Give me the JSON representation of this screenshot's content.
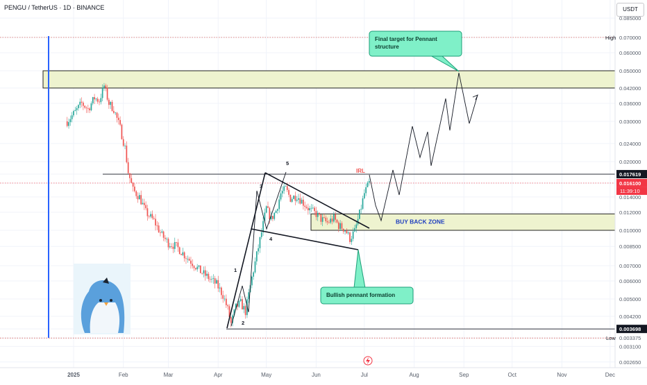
{
  "symbol_title": "PENGU / TetherUS · 1D · BINANCE",
  "currency": "USDT",
  "colors": {
    "up": "#26a69a",
    "down": "#ef5350",
    "zone_fill": "#eef3cf",
    "callout_fill": "#7ff0c8",
    "callout_border": "#1b9e77",
    "buy_back_text": "#1f3fbf",
    "irl_text": "#ef5350",
    "vertical_line": "#2962ff",
    "price_badge": "#f23645",
    "level_badge": "#131722"
  },
  "chart_data": {
    "type": "candlestick",
    "title": "",
    "y_scale": "log",
    "ylim": [
      0.0025,
      0.09
    ],
    "x_tick_labels": [
      "2025",
      "Feb",
      "Mar",
      "Apr",
      "May",
      "Jun",
      "Jul",
      "Aug",
      "Sep",
      "Oct",
      "Nov",
      "Dec"
    ],
    "y_tick_labels": [
      "0.085000",
      "0.070000",
      "0.060000",
      "0.050000",
      "0.042000",
      "0.036000",
      "0.030000",
      "0.024000",
      "0.020000",
      "0.017619",
      "0.016100",
      "0.014000",
      "0.012000",
      "0.010000",
      "0.008500",
      "0.007000",
      "0.006000",
      "0.005000",
      "0.004200",
      "0.003698",
      "0.003375",
      "0.003100",
      "0.002650"
    ],
    "y_tick_values": [
      0.085,
      0.07,
      0.06,
      0.05,
      0.042,
      0.036,
      0.03,
      0.024,
      0.02,
      0.017619,
      0.0161,
      0.014,
      0.012,
      0.01,
      0.0085,
      0.007,
      0.006,
      0.005,
      0.0042,
      0.003698,
      0.003375,
      0.0031,
      0.00265
    ],
    "high_label": "High",
    "high_value": 0.07,
    "low_label": "Low",
    "low_value": 0.003375,
    "current_price": "0.016100",
    "countdown": "11:39:10",
    "level_price": "0.017619",
    "level_bottom": "0.003698",
    "close_path": [
      [
        "2024-12-28",
        0.03
      ],
      [
        "2025-01-02",
        0.033
      ],
      [
        "2025-01-06",
        0.036
      ],
      [
        "2025-01-10",
        0.034
      ],
      [
        "2025-01-14",
        0.038
      ],
      [
        "2025-01-17",
        0.037
      ],
      [
        "2025-01-20",
        0.043
      ],
      [
        "2025-01-23",
        0.036
      ],
      [
        "2025-01-26",
        0.034
      ],
      [
        "2025-01-30",
        0.028
      ],
      [
        "2025-02-02",
        0.023
      ],
      [
        "2025-02-04",
        0.018
      ],
      [
        "2025-02-07",
        0.015
      ],
      [
        "2025-02-11",
        0.014
      ],
      [
        "2025-02-15",
        0.012
      ],
      [
        "2025-02-20",
        0.011
      ],
      [
        "2025-02-25",
        0.0095
      ],
      [
        "2025-03-01",
        0.0088
      ],
      [
        "2025-03-06",
        0.0085
      ],
      [
        "2025-03-11",
        0.0078
      ],
      [
        "2025-03-16",
        0.0072
      ],
      [
        "2025-03-21",
        0.0066
      ],
      [
        "2025-03-26",
        0.0062
      ],
      [
        "2025-03-31",
        0.0058
      ],
      [
        "2025-04-04",
        0.0052
      ],
      [
        "2025-04-07",
        0.0045
      ],
      [
        "2025-04-09",
        0.0039
      ],
      [
        "2025-04-12",
        0.0046
      ],
      [
        "2025-04-15",
        0.0048
      ],
      [
        "2025-04-18",
        0.0044
      ],
      [
        "2025-04-22",
        0.0062
      ],
      [
        "2025-04-25",
        0.0078
      ],
      [
        "2025-04-28",
        0.0098
      ],
      [
        "2025-05-01",
        0.0125
      ],
      [
        "2025-05-04",
        0.0112
      ],
      [
        "2025-05-07",
        0.0122
      ],
      [
        "2025-05-10",
        0.0145
      ],
      [
        "2025-05-13",
        0.0152
      ],
      [
        "2025-05-16",
        0.0138
      ],
      [
        "2025-05-20",
        0.0142
      ],
      [
        "2025-05-24",
        0.0132
      ],
      [
        "2025-05-28",
        0.0123
      ],
      [
        "2025-06-01",
        0.0118
      ],
      [
        "2025-06-04",
        0.0112
      ],
      [
        "2025-06-08",
        0.0108
      ],
      [
        "2025-06-12",
        0.0113
      ],
      [
        "2025-06-15",
        0.0105
      ],
      [
        "2025-06-19",
        0.0101
      ],
      [
        "2025-06-22",
        0.0092
      ],
      [
        "2025-06-25",
        0.0099
      ],
      [
        "2025-06-28",
        0.0118
      ],
      [
        "2025-07-01",
        0.0145
      ],
      [
        "2025-07-04",
        0.0161
      ]
    ]
  },
  "annotations": {
    "target_callout": "Final target for Pennant structure",
    "bullish_callout": "Bullish pennant formation",
    "buy_back_zone": "BUY BACK ZONE",
    "irl": "IRL",
    "wave_labels": [
      "1",
      "2",
      "3",
      "4",
      "5"
    ]
  },
  "icons": {
    "logo": "penguin-logo",
    "flash": "lightning-icon"
  }
}
